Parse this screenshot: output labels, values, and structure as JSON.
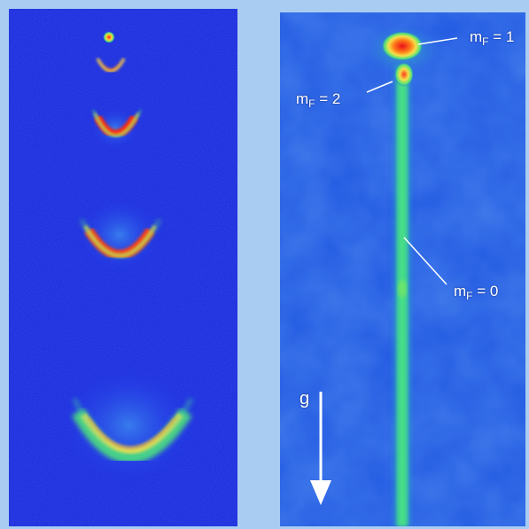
{
  "figure": {
    "left_panel": {
      "description_icon": "atom-cloud-sequence"
    },
    "right_panel": {
      "labels": {
        "mf1": {
          "m": "m",
          "sub": "F",
          "rest": " = 1"
        },
        "mf2": {
          "m": "m",
          "sub": "F",
          "rest": " = 2"
        },
        "mf0": {
          "m": "m",
          "sub": "F",
          "rest": " = 0"
        },
        "g": "g"
      },
      "arrow_icon": "down-arrow-icon"
    },
    "colors": {
      "background": "#a9cdf2",
      "deep_blue": "#1624d8",
      "field_blue": "#2462e6",
      "beam_green": "#3fe07a",
      "hot_red": "#e8201a",
      "warm_yellow": "#f2e24a"
    }
  }
}
